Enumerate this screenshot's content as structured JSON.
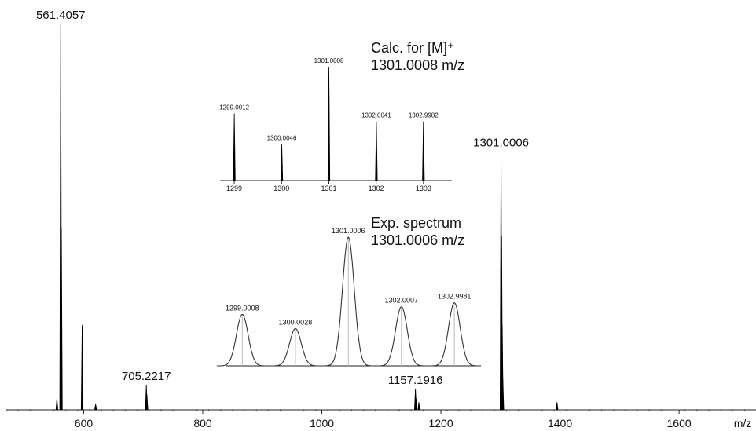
{
  "chart_data": [
    {
      "type": "stick",
      "x_label": "m/z",
      "xlim": [
        470,
        1720
      ],
      "ylim": [
        0,
        100
      ],
      "xticks": [
        600,
        800,
        1000,
        1200,
        1400,
        1600
      ],
      "peaks": {
        "x": [
          561.4057,
          705.2217,
          1157.1916,
          1301.0006
        ],
        "values": [
          100,
          6.5,
          5.5,
          67
        ]
      },
      "minor_peaks": {
        "x": [
          555,
          562.5,
          597.4,
          620,
          706.2,
          1158.2,
          1163,
          1302,
          1303,
          1304,
          1395
        ],
        "values": [
          3,
          47,
          22,
          1.5,
          4,
          3,
          2,
          45,
          22,
          8,
          2
        ]
      },
      "color": "#000000"
    },
    {
      "type": "stick",
      "title": "Calc. for [M]⁺",
      "subtitle": "1301.0008 m/z",
      "xlim": [
        1298.7,
        1303.6
      ],
      "ylim": [
        0,
        100
      ],
      "xticks": [
        1299,
        1300,
        1301,
        1302,
        1303
      ],
      "peaks": {
        "x": [
          1299.0012,
          1300.0046,
          1301.0008,
          1302.0041,
          1302.9982
        ],
        "values": [
          59,
          32,
          100,
          52,
          52
        ]
      },
      "color": "#000000"
    },
    {
      "type": "profile",
      "title": "Exp. spectrum",
      "subtitle": "1301.0006 m/z",
      "xlim": [
        1298.7,
        1303.5
      ],
      "ylim": [
        0,
        100
      ],
      "peaks": {
        "x": [
          1299.0008,
          1300.0028,
          1301.0006,
          1302.0007,
          1302.9981
        ],
        "values": [
          40,
          29,
          100,
          46,
          49
        ]
      },
      "color": "#333333"
    }
  ]
}
